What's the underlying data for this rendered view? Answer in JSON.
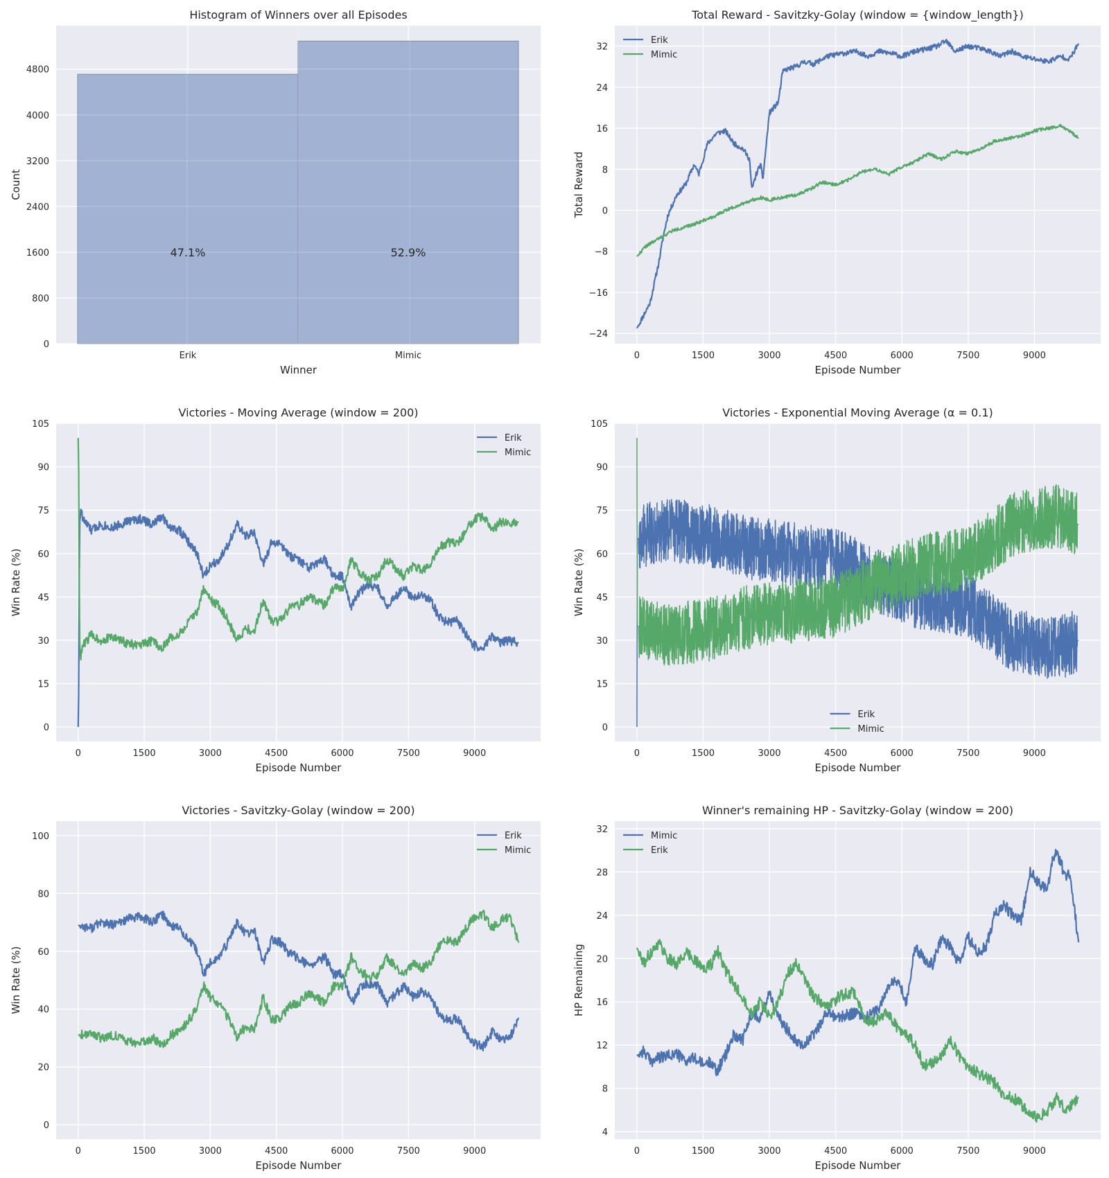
{
  "colors": {
    "background": "#eaeaf2",
    "grid": "#ffffff",
    "erik": "#4c72b0",
    "mimic": "#55a868",
    "bar_fill": "#9aadd0",
    "bar_edge": "#7f8ea8"
  },
  "chart_data": [
    {
      "type": "bar",
      "title": "Histogram of Winners over all Episodes",
      "xlabel": "Winner",
      "ylabel": "Count",
      "categories": [
        "Erik",
        "Mimic"
      ],
      "values": [
        4710,
        5290
      ],
      "bar_labels": [
        "47.1%",
        "52.9%"
      ],
      "ylim": [
        0,
        5560
      ],
      "yticks": [
        0,
        800,
        1600,
        2400,
        3200,
        4000,
        4800
      ],
      "grid": true
    },
    {
      "type": "line",
      "title": "Total Reward - Savitzky-Golay (window = {window_length})",
      "xlabel": "Episode Number",
      "ylabel": "Total Reward",
      "xlim": [
        -500,
        10500
      ],
      "ylim": [
        -26,
        36
      ],
      "xticks": [
        0,
        1500,
        3000,
        4500,
        6000,
        7500,
        9000
      ],
      "yticks": [
        -24,
        -16,
        -8,
        0,
        8,
        16,
        24,
        32
      ],
      "legend_loc": "upper-left",
      "grid": true,
      "series": [
        {
          "name": "Erik",
          "color": "#4c72b0",
          "noise": 0.5,
          "seed": 11,
          "x": [
            0,
            300,
            500,
            600,
            700,
            900,
            1100,
            1300,
            1400,
            1600,
            1800,
            2000,
            2200,
            2400,
            2550,
            2600,
            2700,
            2800,
            2850,
            3000,
            3200,
            3300,
            3400,
            3600,
            3800,
            4000,
            4300,
            4600,
            5000,
            5200,
            5500,
            5800,
            6000,
            6300,
            6600,
            6800,
            7000,
            7200,
            7500,
            7800,
            8000,
            8200,
            8500,
            8700,
            9000,
            9300,
            9600,
            9800,
            10000
          ],
          "y": [
            -23,
            -18,
            -10,
            -5,
            -1,
            3,
            5,
            9,
            7,
            13,
            15,
            15.5,
            13,
            12,
            10,
            4,
            7,
            9,
            6,
            19,
            21,
            27,
            27.5,
            28,
            29,
            28.5,
            30,
            30.5,
            31,
            30,
            31,
            30.5,
            30,
            31,
            31.5,
            32,
            33,
            31,
            32,
            31.5,
            31,
            30,
            31,
            30,
            29.5,
            29,
            30,
            29.5,
            32.5
          ]
        },
        {
          "name": "Mimic",
          "color": "#55a868",
          "noise": 0.3,
          "seed": 22,
          "x": [
            0,
            200,
            400,
            600,
            800,
            1000,
            1200,
            1500,
            1800,
            2000,
            2300,
            2600,
            2800,
            3000,
            3300,
            3600,
            3900,
            4200,
            4500,
            4800,
            5100,
            5400,
            5700,
            6000,
            6300,
            6600,
            6900,
            7200,
            7500,
            7800,
            8100,
            8400,
            8700,
            9000,
            9300,
            9600,
            9800,
            10000
          ],
          "y": [
            -9,
            -7,
            -6,
            -5,
            -4,
            -3.5,
            -3,
            -2,
            -1,
            0,
            1,
            2,
            2.5,
            2,
            2.5,
            3,
            4,
            5.5,
            5,
            6,
            7.5,
            8,
            7,
            8.5,
            9.5,
            11,
            10,
            11.5,
            11,
            12,
            13.5,
            14,
            14.5,
            15.5,
            16,
            16.5,
            15.5,
            14
          ]
        }
      ]
    },
    {
      "type": "line",
      "title": "Victories - Moving Average (window = 200)",
      "xlabel": "Episode Number",
      "ylabel": "Win Rate (%)",
      "xlim": [
        -500,
        10500
      ],
      "ylim": [
        -5,
        105
      ],
      "xticks": [
        0,
        1500,
        3000,
        4500,
        6000,
        7500,
        9000
      ],
      "yticks": [
        0,
        15,
        30,
        45,
        60,
        75,
        90,
        105
      ],
      "legend_loc": "upper-right",
      "grid": true,
      "series": [
        {
          "name": "Erik",
          "color": "#4c72b0",
          "noise": 1.6,
          "seed": 33,
          "x": [
            0,
            10,
            30,
            60,
            100,
            300,
            500,
            800,
            1100,
            1400,
            1700,
            1900,
            2100,
            2300,
            2500,
            2700,
            2850,
            3000,
            3200,
            3400,
            3600,
            3800,
            4000,
            4200,
            4400,
            4600,
            4800,
            5000,
            5200,
            5400,
            5600,
            5800,
            6000,
            6200,
            6400,
            6600,
            6800,
            7000,
            7200,
            7400,
            7600,
            7800,
            8000,
            8200,
            8400,
            8600,
            8800,
            9000,
            9200,
            9400,
            9600,
            9800,
            10000
          ],
          "y": [
            0,
            5,
            70,
            76,
            72,
            68,
            70,
            69,
            71,
            72,
            70,
            73,
            69,
            68,
            64,
            60,
            52,
            56,
            58,
            63,
            70,
            66,
            67,
            56,
            64,
            63,
            59,
            58,
            55,
            56,
            58,
            52,
            52,
            42,
            47,
            49,
            48,
            42,
            45,
            48,
            44,
            46,
            44,
            38,
            36,
            37,
            32,
            28,
            27,
            32,
            29,
            30,
            29
          ]
        },
        {
          "name": "Mimic",
          "color": "#55a868",
          "noise": 1.6,
          "seed": 44,
          "x": [
            0,
            10,
            30,
            60,
            100,
            300,
            500,
            800,
            1100,
            1400,
            1700,
            1900,
            2100,
            2300,
            2500,
            2700,
            2850,
            3000,
            3200,
            3400,
            3600,
            3800,
            4000,
            4200,
            4400,
            4600,
            4800,
            5000,
            5200,
            5400,
            5600,
            5800,
            6000,
            6200,
            6400,
            6600,
            6800,
            7000,
            7200,
            7400,
            7600,
            7800,
            8000,
            8200,
            8400,
            8600,
            8800,
            9000,
            9200,
            9400,
            9600,
            9800,
            10000
          ],
          "y": [
            100,
            95,
            30,
            24,
            28,
            32,
            30,
            31,
            29,
            28,
            30,
            27,
            31,
            32,
            36,
            40,
            48,
            44,
            42,
            37,
            30,
            34,
            33,
            44,
            36,
            37,
            41,
            42,
            45,
            44,
            42,
            48,
            48,
            58,
            53,
            51,
            52,
            58,
            55,
            52,
            56,
            54,
            56,
            62,
            64,
            63,
            68,
            72,
            73,
            68,
            71,
            70,
            71
          ]
        }
      ]
    },
    {
      "type": "line",
      "title": "Victories - Exponential Moving Average (α = 0.1)",
      "xlabel": "Episode Number",
      "ylabel": "Win Rate (%)",
      "xlim": [
        -500,
        10500
      ],
      "ylim": [
        -5,
        105
      ],
      "xticks": [
        0,
        1500,
        3000,
        4500,
        6000,
        7500,
        9000
      ],
      "yticks": [
        0,
        15,
        30,
        45,
        60,
        75,
        90,
        105
      ],
      "legend_loc": "lower-center",
      "grid": true,
      "series": [
        {
          "name": "Erik",
          "color": "#4c72b0",
          "noise": 11,
          "seed": 55,
          "dense": true,
          "x": [
            0,
            10,
            500,
            1500,
            2500,
            3500,
            4500,
            5500,
            6500,
            7500,
            8500,
            9500,
            10000
          ],
          "y": [
            0,
            65,
            68,
            67,
            62,
            60,
            58,
            50,
            44,
            42,
            30,
            27,
            30
          ]
        },
        {
          "name": "Mimic",
          "color": "#55a868",
          "noise": 11,
          "seed": 66,
          "dense": true,
          "x": [
            0,
            10,
            500,
            1500,
            2500,
            3500,
            4500,
            5500,
            6500,
            7500,
            8500,
            9500,
            10000
          ],
          "y": [
            100,
            35,
            32,
            33,
            38,
            40,
            42,
            50,
            56,
            58,
            70,
            73,
            70
          ]
        }
      ]
    },
    {
      "type": "line",
      "title": "Victories - Savitzky-Golay (window = 200)",
      "xlabel": "Episode Number",
      "ylabel": "Win Rate (%)",
      "xlim": [
        -500,
        10500
      ],
      "ylim": [
        -5,
        105
      ],
      "xticks": [
        0,
        1500,
        3000,
        4500,
        6000,
        7500,
        9000
      ],
      "yticks": [
        0,
        20,
        40,
        60,
        80,
        100
      ],
      "legend_loc": "upper-right",
      "grid": true,
      "series": [
        {
          "name": "Erik",
          "color": "#4c72b0",
          "noise": 1.6,
          "seed": 77,
          "x": [
            0,
            300,
            500,
            800,
            1100,
            1400,
            1700,
            1900,
            2100,
            2300,
            2500,
            2700,
            2850,
            3000,
            3200,
            3400,
            3600,
            3800,
            4000,
            4200,
            4400,
            4600,
            4800,
            5000,
            5200,
            5400,
            5600,
            5800,
            6000,
            6200,
            6400,
            6600,
            6800,
            7000,
            7200,
            7400,
            7600,
            7800,
            8000,
            8200,
            8400,
            8600,
            8800,
            9000,
            9200,
            9400,
            9600,
            9800,
            10000
          ],
          "y": [
            69,
            68,
            70,
            69,
            71,
            72,
            70,
            73,
            69,
            68,
            64,
            60,
            52,
            56,
            58,
            63,
            70,
            66,
            67,
            56,
            64,
            63,
            59,
            58,
            55,
            56,
            58,
            52,
            52,
            42,
            47,
            49,
            48,
            42,
            45,
            48,
            44,
            46,
            44,
            38,
            36,
            37,
            32,
            28,
            27,
            32,
            29,
            30,
            37
          ]
        },
        {
          "name": "Mimic",
          "color": "#55a868",
          "noise": 1.6,
          "seed": 88,
          "x": [
            0,
            300,
            500,
            800,
            1100,
            1400,
            1700,
            1900,
            2100,
            2300,
            2500,
            2700,
            2850,
            3000,
            3200,
            3400,
            3600,
            3800,
            4000,
            4200,
            4400,
            4600,
            4800,
            5000,
            5200,
            5400,
            5600,
            5800,
            6000,
            6200,
            6400,
            6600,
            6800,
            7000,
            7200,
            7400,
            7600,
            7800,
            8000,
            8200,
            8400,
            8600,
            8800,
            9000,
            9200,
            9400,
            9600,
            9800,
            10000
          ],
          "y": [
            31,
            32,
            30,
            31,
            29,
            28,
            30,
            27,
            31,
            32,
            36,
            40,
            48,
            44,
            42,
            37,
            30,
            34,
            33,
            44,
            36,
            37,
            41,
            42,
            45,
            44,
            42,
            48,
            48,
            58,
            53,
            51,
            52,
            58,
            55,
            52,
            56,
            54,
            56,
            62,
            64,
            63,
            68,
            72,
            73,
            68,
            71,
            72,
            63
          ]
        }
      ]
    },
    {
      "type": "line",
      "title": "Winner's remaining HP - Savitzky-Golay (window = 200)",
      "xlabel": "Episode Number",
      "ylabel": "HP Remaining",
      "xlim": [
        -500,
        10500
      ],
      "ylim": [
        3.3,
        32.7
      ],
      "xticks": [
        0,
        1500,
        3000,
        4500,
        6000,
        7500,
        9000
      ],
      "yticks": [
        4,
        8,
        12,
        16,
        20,
        24,
        28,
        32
      ],
      "legend_loc": "upper-left",
      "grid": true,
      "series": [
        {
          "name": "Mimic",
          "color": "#4c72b0",
          "noise": 0.55,
          "seed": 99,
          "x": [
            0,
            150,
            300,
            500,
            700,
            900,
            1100,
            1300,
            1500,
            1700,
            1800,
            2000,
            2200,
            2400,
            2600,
            2800,
            3000,
            3200,
            3400,
            3600,
            3800,
            4000,
            4300,
            4600,
            4900,
            5200,
            5500,
            5700,
            5900,
            6100,
            6300,
            6500,
            6700,
            6900,
            7100,
            7300,
            7500,
            7700,
            7900,
            8100,
            8300,
            8500,
            8700,
            8900,
            9100,
            9300,
            9400,
            9500,
            9700,
            9800,
            10000
          ],
          "y": [
            11,
            11.5,
            10.5,
            10.8,
            11,
            11.2,
            10.5,
            10.8,
            10.2,
            10.5,
            9.5,
            11,
            13,
            12.5,
            15,
            14.5,
            17,
            14.5,
            13.5,
            12.5,
            12,
            13,
            15,
            14.5,
            15,
            14.5,
            15.5,
            17.5,
            18,
            16,
            21,
            20,
            19.5,
            22,
            21,
            19.5,
            22,
            20.5,
            21,
            24,
            25,
            24,
            23.5,
            28,
            27,
            26.5,
            29,
            30,
            27.5,
            28,
            21.5
          ]
        },
        {
          "name": "Erik",
          "color": "#55a868",
          "noise": 0.55,
          "seed": 111,
          "x": [
            0,
            150,
            300,
            500,
            700,
            900,
            1100,
            1300,
            1500,
            1700,
            1800,
            2000,
            2200,
            2400,
            2600,
            2800,
            3000,
            3200,
            3400,
            3600,
            3800,
            4000,
            4300,
            4600,
            4900,
            5200,
            5500,
            5700,
            5900,
            6100,
            6300,
            6500,
            6700,
            6900,
            7100,
            7300,
            7500,
            7700,
            7900,
            8100,
            8300,
            8500,
            8700,
            8900,
            9100,
            9300,
            9400,
            9500,
            9700,
            9800,
            10000
          ],
          "y": [
            21,
            19.5,
            20.5,
            21.5,
            20,
            19.5,
            20.5,
            20,
            19,
            19.5,
            21,
            19,
            17.5,
            16.5,
            15,
            16,
            14.5,
            16,
            18.5,
            19.5,
            18,
            16.5,
            15.5,
            16.5,
            17,
            14,
            14.5,
            15,
            13.5,
            13,
            12,
            10,
            10.5,
            11,
            12.5,
            11,
            10,
            9.5,
            9,
            8.5,
            7.5,
            7.2,
            6.5,
            5.5,
            5.2,
            6,
            6.5,
            7.2,
            6,
            6.2,
            7.2
          ]
        }
      ]
    }
  ]
}
